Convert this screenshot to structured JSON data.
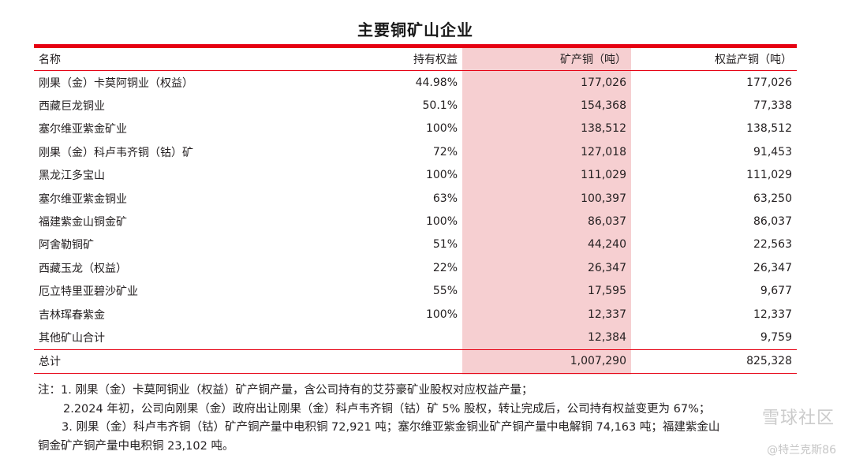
{
  "title": "主要铜矿山企业",
  "headers": {
    "name": "名称",
    "stake": "持有权益",
    "mine_copper": "矿产铜（吨）",
    "equity_copper": "权益产铜（吨）"
  },
  "rows": [
    {
      "name": "刚果（金）卡莫阿铜业（权益）",
      "stake": "44.98%",
      "mine_copper": "177,026",
      "equity_copper": "177,026"
    },
    {
      "name": "西藏巨龙铜业",
      "stake": "50.1%",
      "mine_copper": "154,368",
      "equity_copper": "77,338"
    },
    {
      "name": "塞尔维亚紫金矿业",
      "stake": "100%",
      "mine_copper": "138,512",
      "equity_copper": "138,512"
    },
    {
      "name": "刚果（金）科卢韦齐铜（钴）矿",
      "stake": "72%",
      "mine_copper": "127,018",
      "equity_copper": "91,453"
    },
    {
      "name": "黑龙江多宝山",
      "stake": "100%",
      "mine_copper": "111,029",
      "equity_copper": "111,029"
    },
    {
      "name": "塞尔维亚紫金铜业",
      "stake": "63%",
      "mine_copper": "100,397",
      "equity_copper": "63,250"
    },
    {
      "name": "福建紫金山铜金矿",
      "stake": "100%",
      "mine_copper": "86,037",
      "equity_copper": "86,037"
    },
    {
      "name": "阿舍勒铜矿",
      "stake": "51%",
      "mine_copper": "44,240",
      "equity_copper": "22,563"
    },
    {
      "name": "西藏玉龙（权益）",
      "stake": "22%",
      "mine_copper": "26,347",
      "equity_copper": "26,347"
    },
    {
      "name": "厄立特里亚碧沙矿业",
      "stake": "55%",
      "mine_copper": "17,595",
      "equity_copper": "9,677"
    },
    {
      "name": "吉林珲春紫金",
      "stake": "100%",
      "mine_copper": "12,337",
      "equity_copper": "12,337"
    },
    {
      "name": "其他矿山合计",
      "stake": "",
      "mine_copper": "12,384",
      "equity_copper": "9,759"
    },
    {
      "name": "总计",
      "stake": "",
      "mine_copper": "1,007,290",
      "equity_copper": "825,328"
    }
  ],
  "notes": {
    "line1": "注：1. 刚果（金）卡莫阿铜业（权益）矿产铜产量，含公司持有的艾芬豪矿业股权对应权益产量；",
    "line2": "2.2024 年初，公司向刚果（金）政府出让刚果（金）科卢韦齐铜（钴）矿 5% 股权，转让完成后，公司持有权益变更为 67%；",
    "line3": "3. 刚果（金）科卢韦齐铜（钴）矿产铜产量中电积铜 72,921 吨；塞尔维亚紫金铜业矿产铜产量中电解铜 74,163 吨；福建紫金山",
    "line4": "铜金矿产铜产量中电积铜 23,102 吨。"
  },
  "watermark": {
    "site": "雪球社区",
    "user": "@特兰克斯86"
  }
}
